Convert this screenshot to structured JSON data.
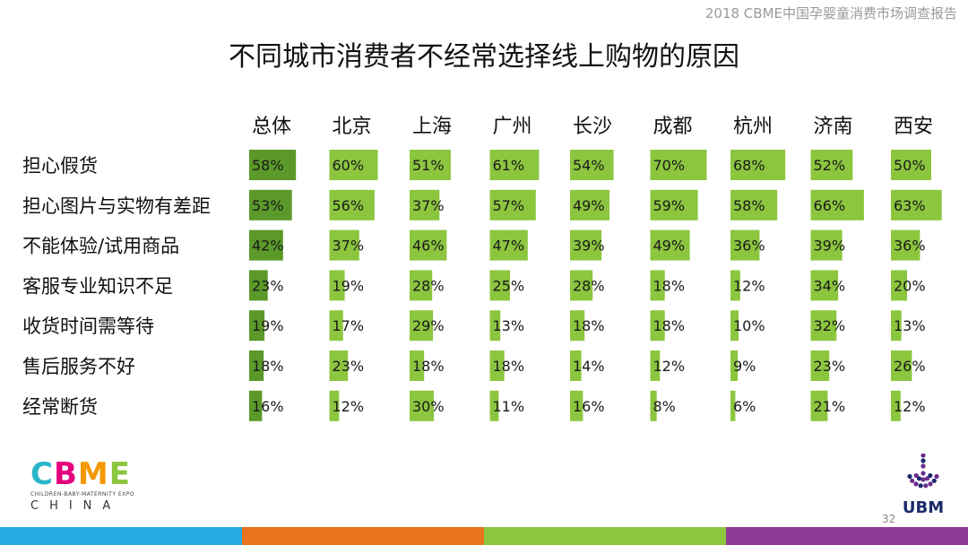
{
  "header_caption": "2018 CBME中国孕婴童消费市场调查报告",
  "chart_data": {
    "type": "table",
    "title": "不同城市消费者不经常选择线上购物的原因",
    "columns": [
      "总体",
      "北京",
      "上海",
      "广州",
      "长沙",
      "成都",
      "杭州",
      "济南",
      "西安"
    ],
    "rows": [
      {
        "label": "担心假货",
        "values": [
          58,
          60,
          51,
          61,
          54,
          70,
          68,
          52,
          50
        ]
      },
      {
        "label": "担心图片与实物有差距",
        "values": [
          53,
          56,
          37,
          57,
          49,
          59,
          58,
          66,
          63
        ]
      },
      {
        "label": "不能体验/试用商品",
        "values": [
          42,
          37,
          46,
          47,
          39,
          49,
          36,
          39,
          36
        ]
      },
      {
        "label": "客服专业知识不足",
        "values": [
          23,
          19,
          28,
          25,
          28,
          18,
          12,
          34,
          20
        ]
      },
      {
        "label": "收货时间需等待",
        "values": [
          19,
          17,
          29,
          13,
          18,
          18,
          10,
          32,
          13
        ]
      },
      {
        "label": "售后服务不好",
        "values": [
          18,
          23,
          18,
          18,
          14,
          12,
          9,
          23,
          26
        ]
      },
      {
        "label": "经常断货",
        "values": [
          16,
          12,
          30,
          11,
          16,
          8,
          6,
          21,
          12
        ]
      }
    ],
    "value_suffix": "%",
    "xlim": [
      0,
      100
    ],
    "colors": {
      "overall": "#5b9a2a",
      "city": "#8cc63f"
    }
  },
  "logo_left": {
    "word": [
      "C",
      "B",
      "M",
      "E"
    ],
    "subtitle": "CHILDREN-BABY-MATERNITY EXPO",
    "region": "CHINA",
    "colors": [
      "#2bb5c8",
      "#e5007e",
      "#f39800",
      "#8cc63f"
    ]
  },
  "logo_right": {
    "text": "UBM",
    "colors": [
      "#6a2c8e",
      "#1a2a6a"
    ]
  },
  "page_number": "32",
  "footer_colors": [
    "#27a9e1",
    "#e8731f",
    "#8cc63f",
    "#8e3a96"
  ]
}
